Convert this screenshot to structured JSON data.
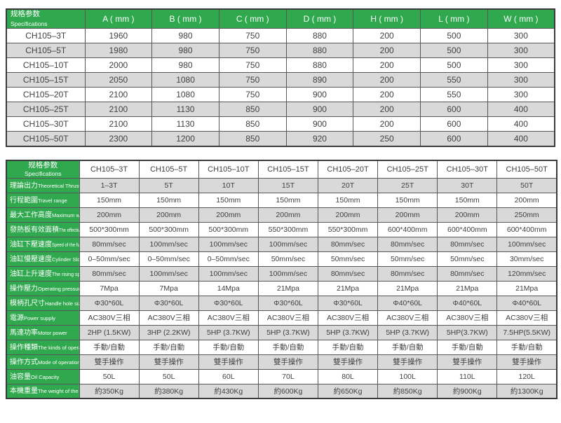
{
  "colors": {
    "header_green": "#2fa84e",
    "stripe_gray": "#d9d9d9",
    "outer_border": "#3a3a3c",
    "grid_line": "#56575b",
    "cell_text": "#414144",
    "header_text": "#ffffff"
  },
  "top_table": {
    "header_zh": "规格参数",
    "header_en": "Specifications",
    "columns": [
      "A ( mm )",
      "B ( mm )",
      "C ( mm )",
      "D ( mm )",
      "H ( mm )",
      "L ( mm )",
      "W ( mm )"
    ],
    "rows": [
      {
        "model": "CH105–3T",
        "values": [
          "1960",
          "980",
          "750",
          "880",
          "200",
          "500",
          "300"
        ]
      },
      {
        "model": "CH105–5T",
        "values": [
          "1980",
          "980",
          "750",
          "880",
          "200",
          "500",
          "300"
        ]
      },
      {
        "model": "CH105–10T",
        "values": [
          "2000",
          "980",
          "750",
          "880",
          "200",
          "500",
          "300"
        ]
      },
      {
        "model": "CH105–15T",
        "values": [
          "2050",
          "1080",
          "750",
          "890",
          "200",
          "550",
          "300"
        ]
      },
      {
        "model": "CH105–20T",
        "values": [
          "2100",
          "1080",
          "750",
          "900",
          "200",
          "550",
          "300"
        ]
      },
      {
        "model": "CH105–25T",
        "values": [
          "2100",
          "1130",
          "850",
          "900",
          "200",
          "600",
          "400"
        ]
      },
      {
        "model": "CH105–30T",
        "values": [
          "2100",
          "1130",
          "850",
          "900",
          "200",
          "600",
          "400"
        ]
      },
      {
        "model": "CH105–50T",
        "values": [
          "2300",
          "1200",
          "850",
          "920",
          "250",
          "600",
          "400"
        ]
      }
    ]
  },
  "bottom_table": {
    "header_zh": "规格参数",
    "header_en": "Specifications",
    "models": [
      "CH105–3T",
      "CH105–5T",
      "CH105–10T",
      "CH105–15T",
      "CH105–20T",
      "CH105–25T",
      "CH105–30T",
      "CH105–50T"
    ],
    "rows": [
      {
        "label_zh": "理論出力",
        "label_en": "Theoretical Thrust",
        "values": [
          "1–3T",
          "5T",
          "10T",
          "15T",
          "20T",
          "25T",
          "30T",
          "50T"
        ]
      },
      {
        "label_zh": "行程範圍",
        "label_en": "Travel range",
        "values": [
          "150mm",
          "150mm",
          "150mm",
          "150mm",
          "150mm",
          "150mm",
          "150mm",
          "200mm"
        ]
      },
      {
        "label_zh": "最大工作高度",
        "label_en": "Maximum working height",
        "values": [
          "200mm",
          "200mm",
          "200mm",
          "200mm",
          "200mm",
          "200mm",
          "200mm",
          "250mm"
        ]
      },
      {
        "label_zh": "發熱板有效面積",
        "label_en": "The effective area of the heating plate",
        "values": [
          "500*300mm",
          "500*300mm",
          "500*300mm",
          "550*300mm",
          "550*300mm",
          "600*400mm",
          "600*400mm",
          "600*400mm"
        ]
      },
      {
        "label_zh": "油缸下壓速度",
        "label_en": "Speed of the fuel tank under pressure",
        "values": [
          "80mm/sec",
          "100mm/sec",
          "100mm/sec",
          "100mm/sec",
          "80mm/sec",
          "80mm/sec",
          "80mm/sec",
          "100mm/sec"
        ]
      },
      {
        "label_zh": "油缸慢壓速度",
        "label_en": "Cylinder Slow speed",
        "values": [
          "0–50mm/sec",
          "0–50mm/sec",
          "0–50mm/sec",
          "50mm/sec",
          "50mm/sec",
          "50mm/sec",
          "50mm/sec",
          "30mm/sec"
        ]
      },
      {
        "label_zh": "油缸上升速度",
        "label_en": "The rising speed of the cylinder",
        "values": [
          "80mm/sec",
          "100mm/sec",
          "100mm/sec",
          "100mm/sec",
          "80mm/sec",
          "80mm/sec",
          "80mm/sec",
          "120mm/sec"
        ]
      },
      {
        "label_zh": "操作壓力",
        "label_en": "Operating pressure",
        "values": [
          "7Mpa",
          "7Mpa",
          "14Mpa",
          "21Mpa",
          "21Mpa",
          "21Mpa",
          "21Mpa",
          "21Mpa"
        ]
      },
      {
        "label_zh": "模柄孔尺寸",
        "label_en": "Handle hole size",
        "values": [
          "Φ30*60L",
          "Φ30*60L",
          "Φ30*60L",
          "Φ30*60L",
          "Φ30*60L",
          "Φ40*60L",
          "Φ40*60L",
          "Φ40*60L"
        ]
      },
      {
        "label_zh": "電源",
        "label_en": "Power supply",
        "values": [
          "AC380V三相",
          "AC380V三相",
          "AC380V三相",
          "AC380V三相",
          "AC380V三相",
          "AC380V三相",
          "AC380V三相",
          "AC380V三相"
        ]
      },
      {
        "label_zh": "馬達功率",
        "label_en": "Motor power",
        "values": [
          "2HP (1.5KW)",
          "3HP (2.2KW)",
          "5HP (3.7KW)",
          "5HP (3.7KW)",
          "5HP (3.7KW)",
          "5HP (3.7KW)",
          "5HP(3.7KW)",
          "7.5HP(5.5KW)"
        ]
      },
      {
        "label_zh": "操作種類",
        "label_en": "The kinds of operations",
        "values": [
          "手動/自動",
          "手動/自動",
          "手動/自動",
          "手動/自動",
          "手動/自動",
          "手動/自動",
          "手動/自動",
          "手動/自動"
        ]
      },
      {
        "label_zh": "操作方式",
        "label_en": "Mode of operation",
        "values": [
          "雙手操作",
          "雙手操作",
          "雙手操作",
          "雙手操作",
          "雙手操作",
          "雙手操作",
          "雙手操作",
          "雙手操作"
        ]
      },
      {
        "label_zh": "油容量",
        "label_en": "Oil Capacity",
        "values": [
          "50L",
          "50L",
          "60L",
          "70L",
          "80L",
          "100L",
          "110L",
          "120L"
        ]
      },
      {
        "label_zh": "本機重量",
        "label_en": "The weight of the machine",
        "values": [
          "約350Kg",
          "約380Kg",
          "約430Kg",
          "約600Kg",
          "約650Kg",
          "約850Kg",
          "約900Kg",
          "約1300Kg"
        ]
      }
    ]
  }
}
